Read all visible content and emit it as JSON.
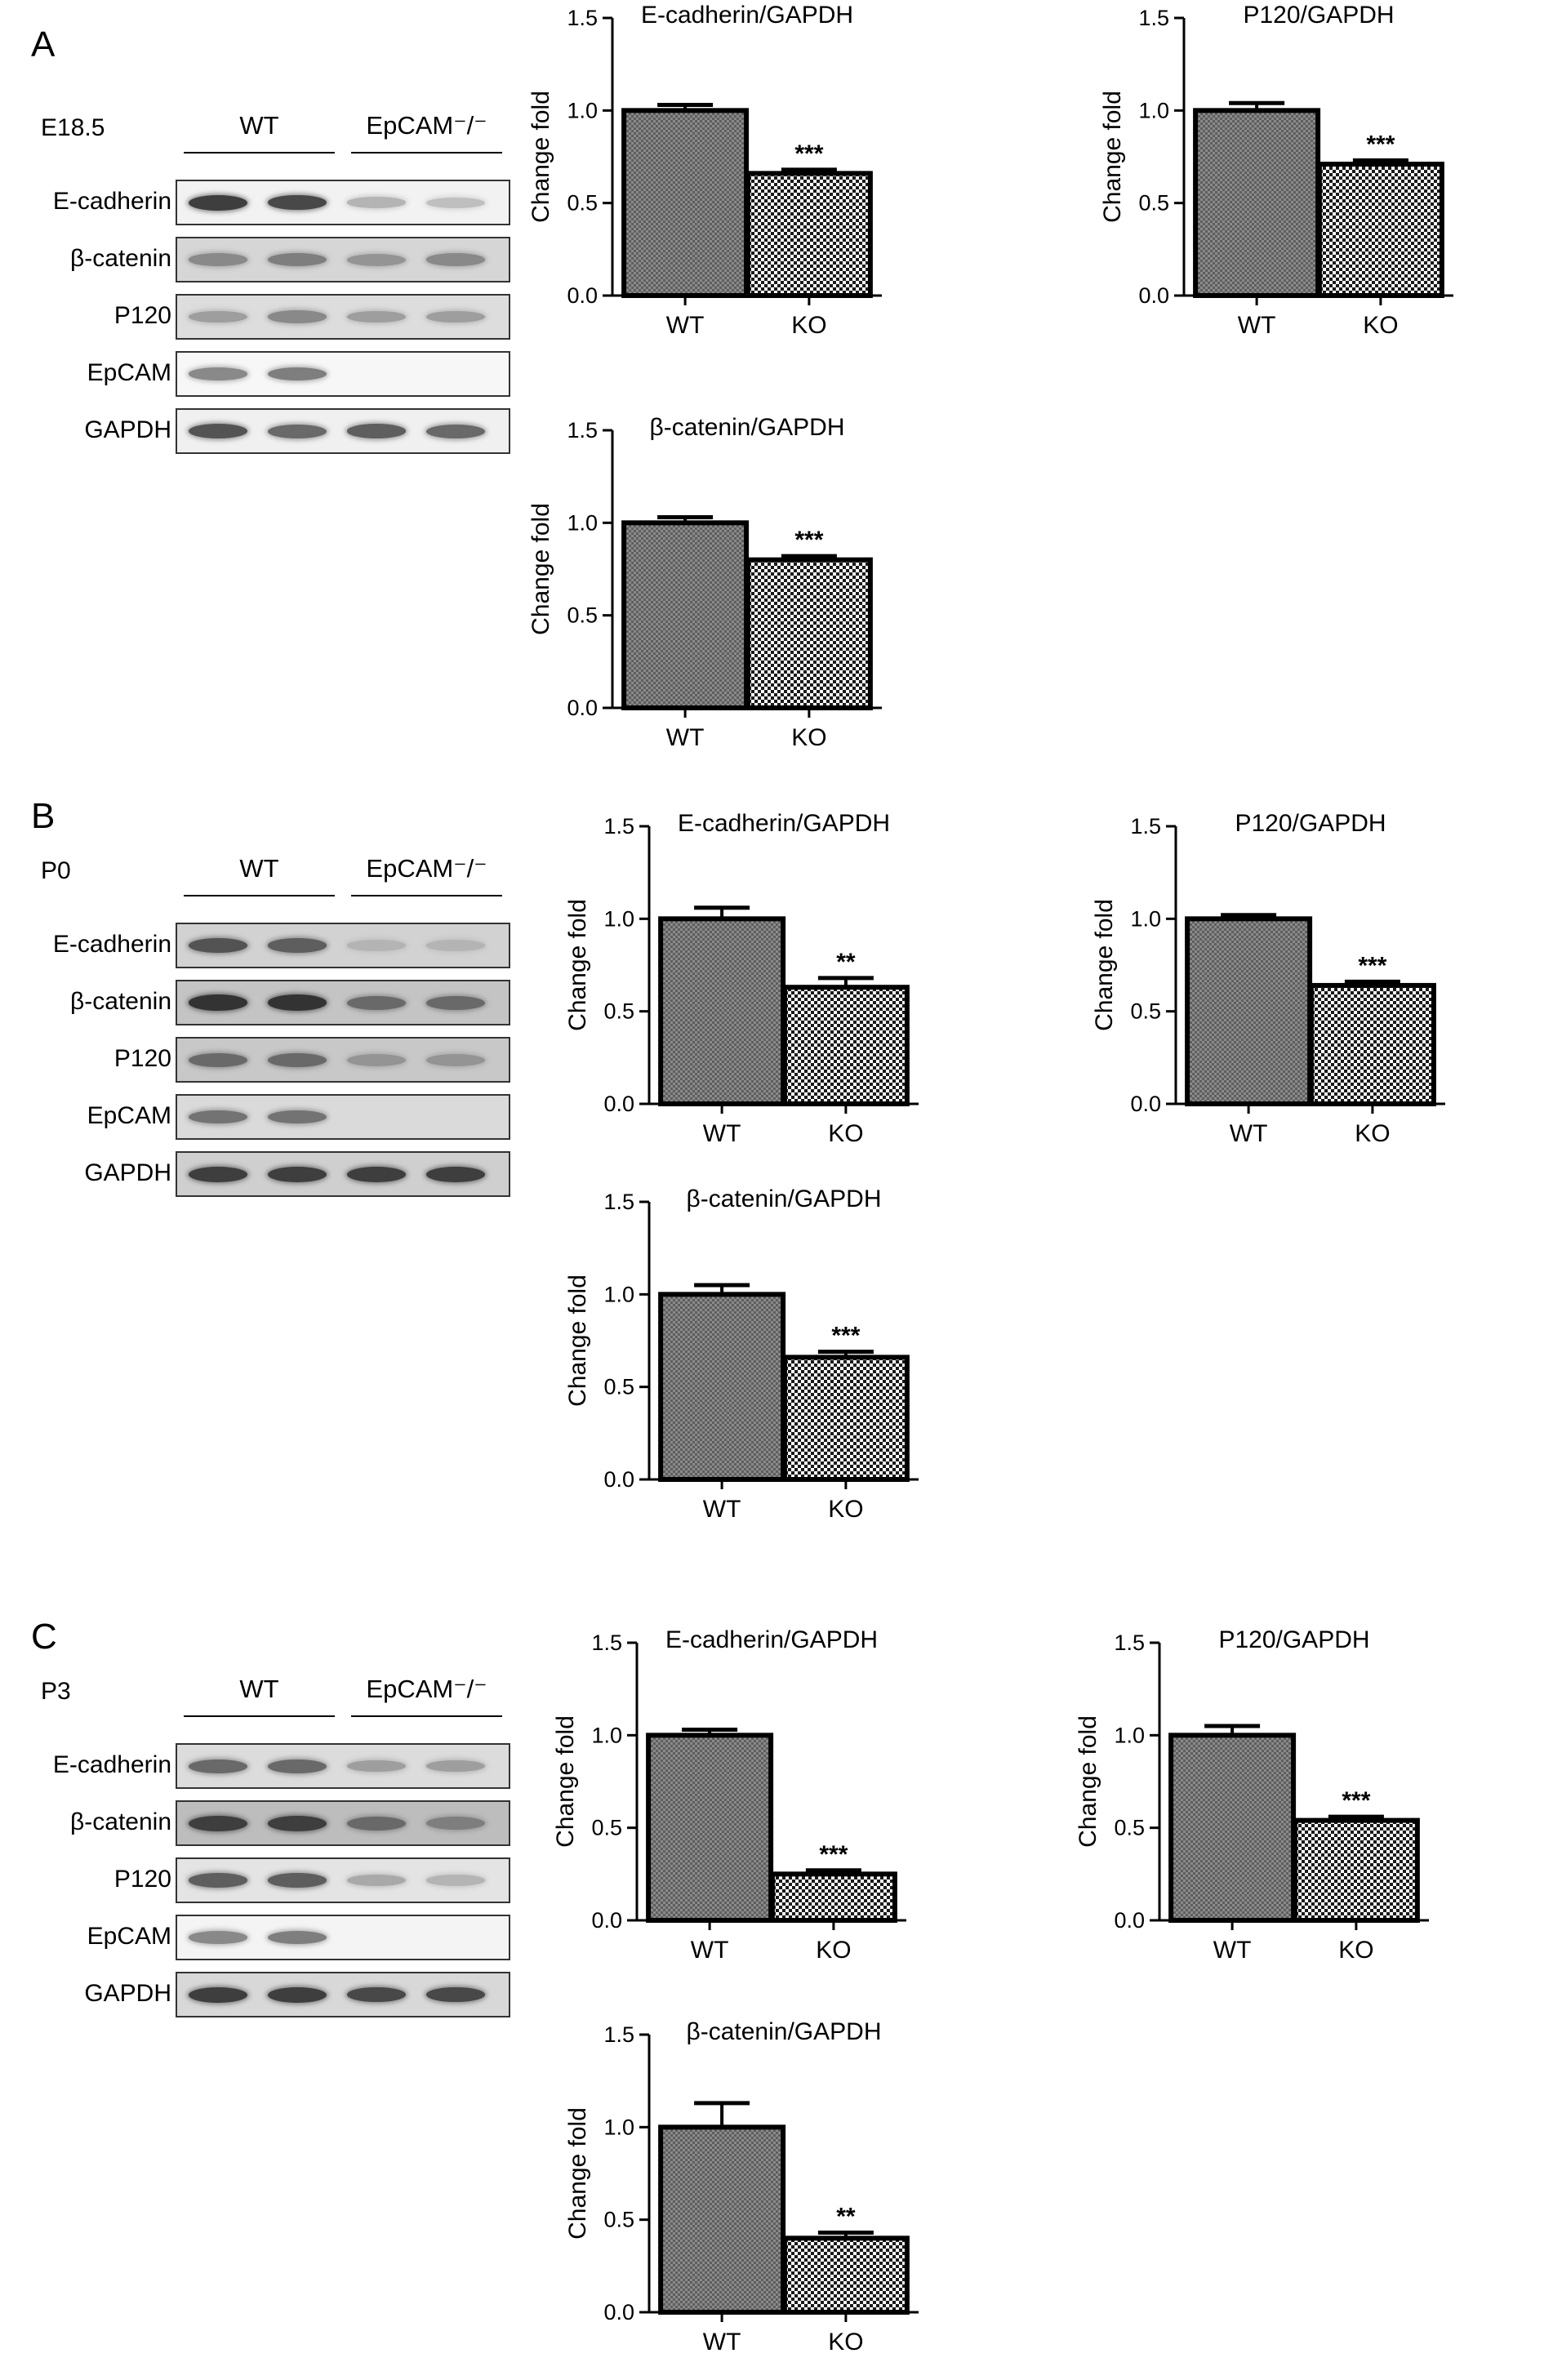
{
  "panels": [
    {
      "letter": "A",
      "blot": {
        "condition": "E18.5",
        "groups": [
          "WT",
          "EpCAM⁻/⁻"
        ],
        "rows": [
          {
            "label": "E-cadherin",
            "bands": [
              0.9,
              0.85,
              0.35,
              0.3
            ],
            "bg": "#f2f2f2"
          },
          {
            "label": "β-catenin",
            "bands": [
              0.55,
              0.6,
              0.5,
              0.55
            ],
            "bg": "#d6d6d6"
          },
          {
            "label": "P120",
            "bands": [
              0.45,
              0.55,
              0.45,
              0.45
            ],
            "bg": "#dddddd"
          },
          {
            "label": "EpCAM",
            "bands": [
              0.55,
              0.6,
              0,
              0
            ],
            "bg": "#f7f7f7"
          },
          {
            "label": "GAPDH",
            "bands": [
              0.8,
              0.7,
              0.75,
              0.7
            ],
            "bg": "#f0f0f0"
          }
        ]
      },
      "charts": [
        {
          "type": "bar",
          "title": "E-cadherin/GAPDH",
          "ylabel": "Change fold",
          "categories": [
            "WT",
            "KO"
          ],
          "values": [
            1.0,
            0.66
          ],
          "errors": [
            0.03,
            0.02
          ],
          "sig": [
            "",
            "***"
          ],
          "ylim": [
            0,
            1.5
          ],
          "yticks": [
            "0.0",
            "0.5",
            "1.0",
            "1.5"
          ]
        },
        {
          "type": "bar",
          "title": "P120/GAPDH",
          "ylabel": "Change fold",
          "categories": [
            "WT",
            "KO"
          ],
          "values": [
            1.0,
            0.71
          ],
          "errors": [
            0.04,
            0.02
          ],
          "sig": [
            "",
            "***"
          ],
          "ylim": [
            0,
            1.5
          ],
          "yticks": [
            "0.0",
            "0.5",
            "1.0",
            "1.5"
          ]
        },
        {
          "type": "bar",
          "title": "β-catenin/GAPDH",
          "ylabel": "Change fold",
          "categories": [
            "WT",
            "KO"
          ],
          "values": [
            1.0,
            0.8
          ],
          "errors": [
            0.03,
            0.02
          ],
          "sig": [
            "",
            "***"
          ],
          "ylim": [
            0,
            1.5
          ],
          "yticks": [
            "0.0",
            "0.5",
            "1.0",
            "1.5"
          ]
        }
      ]
    },
    {
      "letter": "B",
      "blot": {
        "condition": "P0",
        "groups": [
          "WT",
          "EpCAM⁻/⁻"
        ],
        "rows": [
          {
            "label": "E-cadherin",
            "bands": [
              0.8,
              0.75,
              0.35,
              0.35
            ],
            "bg": "#d2d2d2"
          },
          {
            "label": "β-catenin",
            "bands": [
              0.95,
              0.95,
              0.7,
              0.7
            ],
            "bg": "#c4c4c4"
          },
          {
            "label": "P120",
            "bands": [
              0.7,
              0.7,
              0.5,
              0.5
            ],
            "bg": "#c8c8c8"
          },
          {
            "label": "EpCAM",
            "bands": [
              0.65,
              0.65,
              0,
              0
            ],
            "bg": "#dadada"
          },
          {
            "label": "GAPDH",
            "bands": [
              0.9,
              0.9,
              0.9,
              0.9
            ],
            "bg": "#cfcfcf"
          }
        ]
      },
      "charts": [
        {
          "type": "bar",
          "title": "E-cadherin/GAPDH",
          "ylabel": "Change fold",
          "categories": [
            "WT",
            "KO"
          ],
          "values": [
            1.0,
            0.63
          ],
          "errors": [
            0.06,
            0.05
          ],
          "sig": [
            "",
            "**"
          ],
          "ylim": [
            0,
            1.5
          ],
          "yticks": [
            "0.0",
            "0.5",
            "1.0",
            "1.5"
          ]
        },
        {
          "type": "bar",
          "title": "P120/GAPDH",
          "ylabel": "Change fold",
          "categories": [
            "WT",
            "KO"
          ],
          "values": [
            1.0,
            0.64
          ],
          "errors": [
            0.02,
            0.02
          ],
          "sig": [
            "",
            "***"
          ],
          "ylim": [
            0,
            1.5
          ],
          "yticks": [
            "0.0",
            "0.5",
            "1.0",
            "1.5"
          ]
        },
        {
          "type": "bar",
          "title": "β-catenin/GAPDH",
          "ylabel": "Change fold",
          "categories": [
            "WT",
            "KO"
          ],
          "values": [
            1.0,
            0.66
          ],
          "errors": [
            0.05,
            0.03
          ],
          "sig": [
            "",
            "***"
          ],
          "ylim": [
            0,
            1.5
          ],
          "yticks": [
            "0.0",
            "0.5",
            "1.0",
            "1.5"
          ]
        }
      ]
    },
    {
      "letter": "C",
      "blot": {
        "condition": "P3",
        "groups": [
          "WT",
          "EpCAM⁻/⁻"
        ],
        "rows": [
          {
            "label": "E-cadherin",
            "bands": [
              0.7,
              0.7,
              0.45,
              0.45
            ],
            "bg": "#dcdcdc"
          },
          {
            "label": "β-catenin",
            "bands": [
              0.9,
              0.9,
              0.7,
              0.6
            ],
            "bg": "#bdbdbd"
          },
          {
            "label": "P120",
            "bands": [
              0.75,
              0.75,
              0.4,
              0.35
            ],
            "bg": "#e4e4e4"
          },
          {
            "label": "EpCAM",
            "bands": [
              0.55,
              0.6,
              0,
              0
            ],
            "bg": "#f4f4f4"
          },
          {
            "label": "GAPDH",
            "bands": [
              0.9,
              0.9,
              0.85,
              0.85
            ],
            "bg": "#d8d8d8"
          }
        ]
      },
      "charts": [
        {
          "type": "bar",
          "title": "E-cadherin/GAPDH",
          "ylabel": "Change fold",
          "categories": [
            "WT",
            "KO"
          ],
          "values": [
            1.0,
            0.25
          ],
          "errors": [
            0.03,
            0.02
          ],
          "sig": [
            "",
            "***"
          ],
          "ylim": [
            0,
            1.5
          ],
          "yticks": [
            "0.0",
            "0.5",
            "1.0",
            "1.5"
          ]
        },
        {
          "type": "bar",
          "title": "P120/GAPDH",
          "ylabel": "Change fold",
          "categories": [
            "WT",
            "KO"
          ],
          "values": [
            1.0,
            0.54
          ],
          "errors": [
            0.05,
            0.02
          ],
          "sig": [
            "",
            "***"
          ],
          "ylim": [
            0,
            1.5
          ],
          "yticks": [
            "0.0",
            "0.5",
            "1.0",
            "1.5"
          ]
        },
        {
          "type": "bar",
          "title": "β-catenin/GAPDH",
          "ylabel": "Change fold",
          "categories": [
            "WT",
            "KO"
          ],
          "values": [
            1.0,
            0.4
          ],
          "errors": [
            0.13,
            0.03
          ],
          "sig": [
            "",
            "**"
          ],
          "ylim": [
            0,
            1.5
          ],
          "yticks": [
            "0.0",
            "0.5",
            "1.0",
            "1.5"
          ]
        }
      ]
    }
  ],
  "chart_data": [
    {
      "type": "bar",
      "panel": "A",
      "title": "E-cadherin/GAPDH",
      "ylabel": "Change fold",
      "categories": [
        "WT",
        "KO"
      ],
      "values": [
        1.0,
        0.66
      ],
      "ylim": [
        0,
        1.5
      ]
    },
    {
      "type": "bar",
      "panel": "A",
      "title": "P120/GAPDH",
      "ylabel": "Change fold",
      "categories": [
        "WT",
        "KO"
      ],
      "values": [
        1.0,
        0.71
      ],
      "ylim": [
        0,
        1.5
      ]
    },
    {
      "type": "bar",
      "panel": "A",
      "title": "β-catenin/GAPDH",
      "ylabel": "Change fold",
      "categories": [
        "WT",
        "KO"
      ],
      "values": [
        1.0,
        0.8
      ],
      "ylim": [
        0,
        1.5
      ]
    },
    {
      "type": "bar",
      "panel": "B",
      "title": "E-cadherin/GAPDH",
      "ylabel": "Change fold",
      "categories": [
        "WT",
        "KO"
      ],
      "values": [
        1.0,
        0.63
      ],
      "ylim": [
        0,
        1.5
      ]
    },
    {
      "type": "bar",
      "panel": "B",
      "title": "P120/GAPDH",
      "ylabel": "Change fold",
      "categories": [
        "WT",
        "KO"
      ],
      "values": [
        1.0,
        0.64
      ],
      "ylim": [
        0,
        1.5
      ]
    },
    {
      "type": "bar",
      "panel": "B",
      "title": "β-catenin/GAPDH",
      "ylabel": "Change fold",
      "categories": [
        "WT",
        "KO"
      ],
      "values": [
        1.0,
        0.66
      ],
      "ylim": [
        0,
        1.5
      ]
    },
    {
      "type": "bar",
      "panel": "C",
      "title": "E-cadherin/GAPDH",
      "ylabel": "Change fold",
      "categories": [
        "WT",
        "KO"
      ],
      "values": [
        1.0,
        0.25
      ],
      "ylim": [
        0,
        1.5
      ]
    },
    {
      "type": "bar",
      "panel": "C",
      "title": "P120/GAPDH",
      "ylabel": "Change fold",
      "categories": [
        "WT",
        "KO"
      ],
      "values": [
        1.0,
        0.54
      ],
      "ylim": [
        0,
        1.5
      ]
    },
    {
      "type": "bar",
      "panel": "C",
      "title": "β-catenin/GAPDH",
      "ylabel": "Change fold",
      "categories": [
        "WT",
        "KO"
      ],
      "values": [
        1.0,
        0.4
      ],
      "ylim": [
        0,
        1.5
      ]
    }
  ]
}
